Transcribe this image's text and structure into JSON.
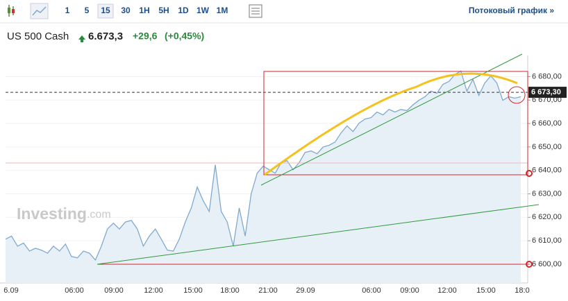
{
  "toolbar": {
    "intervals": [
      "1",
      "5",
      "15",
      "30",
      "1H",
      "5H",
      "1D",
      "1W",
      "1M"
    ],
    "active": 2,
    "stream_link": "Потоковый график »"
  },
  "header": {
    "name": "US 500 Cash",
    "price": "6.673,3",
    "change": "+29,6",
    "change_pct": "(+0,45%)"
  },
  "watermark": {
    "brand": "Investing",
    "suffix": ".com"
  },
  "chart_data": {
    "type": "area",
    "color": "#7fa9cf",
    "fill": "#e8f0f7",
    "values": [
      6610.7,
      6612,
      6607.7,
      6609,
      6605.6,
      6606.8,
      6606,
      6604.7,
      6607.7,
      6605.6,
      6608.6,
      6603.3,
      6602.7,
      6605.6,
      6604.7,
      6601.8,
      6607.7,
      6615,
      6617.5,
      6615,
      6618,
      6618.7,
      6615,
      6607.7,
      6612,
      6615,
      6610.7,
      6606,
      6605.6,
      6610.7,
      6618,
      6624,
      6632.9,
      6627,
      6622.5,
      6642.4,
      6622.5,
      6618,
      6607.7,
      6624,
      6612,
      6630,
      6638.8,
      6641.8,
      6640.3,
      6638.8,
      6643.3,
      6644.1,
      6640.3,
      6643.3,
      6647.7,
      6648.3,
      6647.1,
      6650,
      6650.7,
      6652.1,
      6656,
      6659,
      6656.6,
      6660.1,
      6661.9,
      6662.5,
      6664.9,
      6663.7,
      6666,
      6664.9,
      6666,
      6665.5,
      6667.9,
      6669.9,
      6671.4,
      6673.8,
      6672.9,
      6676.7,
      6677.9,
      6680.9,
      6682.4,
      6673.8,
      6678.8,
      6672,
      6677.3,
      6680.3,
      6677.3,
      6669.9,
      6671.4,
      6670.8,
      6671.4
    ],
    "xticks": [
      "6.09",
      "06:00",
      "09:00",
      "12:00",
      "15:00",
      "18:00",
      "21:00",
      "29.09",
      "06:00",
      "09:00",
      "12:00",
      "15:00",
      "18:0"
    ],
    "ylim": [
      6592,
      6689
    ],
    "yticks": [
      {
        "value": 6680,
        "label": "6 680,00"
      },
      {
        "value": 6670,
        "label": "6 670,00"
      },
      {
        "value": 6660,
        "label": "6 660,00"
      },
      {
        "value": 6650,
        "label": "6 650,00"
      },
      {
        "value": 6640,
        "label": "6 640,00"
      },
      {
        "value": 6630,
        "label": "6 630,00"
      },
      {
        "value": 6620,
        "label": "6 620,00"
      },
      {
        "value": 6610,
        "label": "6 610,00"
      },
      {
        "value": 6600,
        "label": "6 600,00"
      }
    ],
    "last_price": {
      "value": 6673.3,
      "label": "6 673,30"
    }
  }
}
